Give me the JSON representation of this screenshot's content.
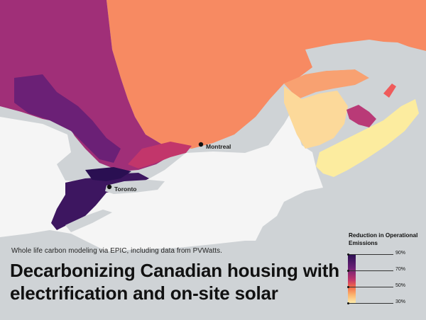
{
  "cities": [
    {
      "name": "Montreal"
    },
    {
      "name": "Toronto"
    }
  ],
  "subtitle": "Whole life carbon modeling via EPIC, including data from PVWatts.",
  "title": "Decarbonizing Canadian housing with electrification and on-site solar",
  "legend": {
    "title": "Reduction in Operational Emissions",
    "ticks": [
      "90%",
      "70%",
      "50%",
      "30%"
    ],
    "ramp": [
      "#2a0f52",
      "#6b2076",
      "#c2366b",
      "#f36b4a",
      "#fbb36e",
      "#fdf0b0"
    ]
  },
  "colors": {
    "water": "#cfd3d6",
    "us_land": "#f5f5f5",
    "quebec_north": "#f78a62",
    "ontario_north": "#a02f78",
    "east_quebec": "#f8a171",
    "new_brunswick": "#fcd99a",
    "nova_scotia": "#fcec9f",
    "pei": "#b93a77"
  }
}
